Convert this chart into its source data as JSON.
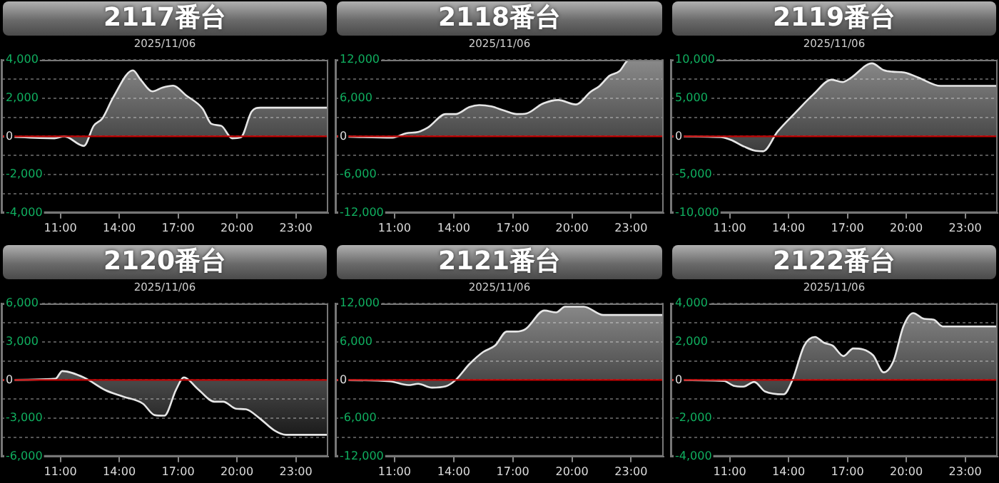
{
  "chart_data": [
    {
      "type": "area",
      "title": "2117番台",
      "subtitle": "2025/11/06",
      "color": "#e6e6e6",
      "grid": "y",
      "x": [
        8,
        10.7,
        11.2,
        12.2,
        12.7,
        13.15,
        13.7,
        14.7,
        15.1,
        15.7,
        16.2,
        16.75,
        17.4,
        18.25,
        18.7,
        19.2,
        19.75,
        20.2,
        20.75,
        21.2,
        24.65
      ],
      "values": [
        0,
        -100,
        0,
        -500,
        550,
        950,
        2050,
        3450,
        2950,
        2350,
        2550,
        2650,
        2150,
        1450,
        650,
        550,
        -100,
        -50,
        1300,
        1500,
        1500
      ],
      "xlim": [
        8,
        24.65
      ],
      "xticks": [
        {
          "value": 11,
          "label": "11:00"
        },
        {
          "value": 14,
          "label": "14:00"
        },
        {
          "value": 17,
          "label": "17:00"
        },
        {
          "value": 20,
          "label": "20:00"
        },
        {
          "value": 23,
          "label": "23:00"
        }
      ],
      "ylim": [
        -4000,
        4000
      ],
      "yticks": [
        {
          "value": -4000,
          "label": "-4,000"
        },
        {
          "value": -3000,
          "label": null
        },
        {
          "value": -2000,
          "label": "-2,000"
        },
        {
          "value": -1000,
          "label": null
        },
        {
          "value": 0,
          "label": "0"
        },
        {
          "value": 1000,
          "label": null
        },
        {
          "value": 2000,
          "label": "2,000"
        },
        {
          "value": 3000,
          "label": null
        },
        {
          "value": 4000,
          "label": "4,000"
        }
      ],
      "ref_lines": [
        {
          "axis": "y",
          "value": 0,
          "color": "#c00000"
        }
      ]
    },
    {
      "type": "area",
      "title": "2118番台",
      "subtitle": "2025/11/06",
      "color": "#e6e6e6",
      "grid": "y",
      "x": [
        8,
        10.9,
        11.6,
        12.2,
        12.7,
        13.6,
        14.1,
        14.8,
        15.3,
        15.9,
        16.6,
        17.2,
        17.7,
        18.5,
        19.3,
        20.2,
        20.95,
        21.4,
        21.9,
        22.4,
        22.9,
        24.65
      ],
      "values": [
        0,
        -200,
        500,
        700,
        1400,
        3500,
        3500,
        4600,
        4900,
        4700,
        4000,
        3500,
        3600,
        5100,
        5700,
        5000,
        7000,
        7900,
        9500,
        10200,
        12000,
        12000
      ],
      "xlim": [
        8,
        24.65
      ],
      "xticks": [
        {
          "value": 11,
          "label": "11:00"
        },
        {
          "value": 14,
          "label": "14:00"
        },
        {
          "value": 17,
          "label": "17:00"
        },
        {
          "value": 20,
          "label": "20:00"
        },
        {
          "value": 23,
          "label": "23:00"
        }
      ],
      "ylim": [
        -12000,
        12000
      ],
      "yticks": [
        {
          "value": -12000,
          "label": "-12,000"
        },
        {
          "value": -9000,
          "label": null
        },
        {
          "value": -6000,
          "label": "-6,000"
        },
        {
          "value": -3000,
          "label": null
        },
        {
          "value": 0,
          "label": "0"
        },
        {
          "value": 3000,
          "label": null
        },
        {
          "value": 6000,
          "label": "6,000"
        },
        {
          "value": 9000,
          "label": null
        },
        {
          "value": 12000,
          "label": "12,000"
        }
      ],
      "ref_lines": [
        {
          "axis": "y",
          "value": 0,
          "color": "#c00000"
        }
      ]
    },
    {
      "type": "area",
      "title": "2119番台",
      "subtitle": "2025/11/06",
      "color": "#e6e6e6",
      "grid": "y",
      "x": [
        8,
        10.55,
        11.05,
        11.75,
        12.25,
        12.7,
        13.45,
        14.35,
        15.25,
        16.2,
        16.75,
        17.15,
        18.25,
        18.85,
        19.3,
        19.9,
        20.6,
        21.75,
        24.65
      ],
      "values": [
        0,
        -100,
        -450,
        -1350,
        -1850,
        -1950,
        650,
        3100,
        5450,
        7400,
        7100,
        7600,
        9550,
        8650,
        8450,
        8350,
        7700,
        6600,
        6600
      ],
      "xlim": [
        8,
        24.65
      ],
      "xticks": [
        {
          "value": 11,
          "label": "11:00"
        },
        {
          "value": 14,
          "label": "14:00"
        },
        {
          "value": 17,
          "label": "17:00"
        },
        {
          "value": 20,
          "label": "20:00"
        },
        {
          "value": 23,
          "label": "23:00"
        }
      ],
      "ylim": [
        -10000,
        10000
      ],
      "yticks": [
        {
          "value": -10000,
          "label": "-10,000"
        },
        {
          "value": -7500,
          "label": null
        },
        {
          "value": -5000,
          "label": "-5,000"
        },
        {
          "value": -2500,
          "label": null
        },
        {
          "value": 0,
          "label": "0"
        },
        {
          "value": 2500,
          "label": null
        },
        {
          "value": 5000,
          "label": "5,000"
        },
        {
          "value": 7500,
          "label": null
        },
        {
          "value": 10000,
          "label": "10,000"
        }
      ],
      "ref_lines": [
        {
          "axis": "y",
          "value": 0,
          "color": "#c00000"
        }
      ]
    },
    {
      "type": "area",
      "title": "2120番台",
      "subtitle": "2025/11/06",
      "color": "#e6e6e6",
      "grid": "y",
      "x": [
        8,
        10.75,
        11.1,
        12.2,
        13.3,
        14.2,
        15.2,
        15.8,
        16.3,
        16.9,
        17.3,
        18,
        18.85,
        19.3,
        19.95,
        20.45,
        21.15,
        21.9,
        22.5,
        24.65
      ],
      "values": [
        0,
        100,
        700,
        200,
        -800,
        -1300,
        -1850,
        -2750,
        -2800,
        -750,
        200,
        -700,
        -1700,
        -1700,
        -2250,
        -2300,
        -3000,
        -3950,
        -4300,
        -4300
      ],
      "xlim": [
        8,
        24.65
      ],
      "xticks": [
        {
          "value": 11,
          "label": "11:00"
        },
        {
          "value": 14,
          "label": "14:00"
        },
        {
          "value": 17,
          "label": "17:00"
        },
        {
          "value": 20,
          "label": "20:00"
        },
        {
          "value": 23,
          "label": "23:00"
        }
      ],
      "ylim": [
        -6000,
        6000
      ],
      "yticks": [
        {
          "value": -6000,
          "label": "-6,000"
        },
        {
          "value": -4500,
          "label": null
        },
        {
          "value": -3000,
          "label": "-3,000"
        },
        {
          "value": -1500,
          "label": null
        },
        {
          "value": 0,
          "label": "0"
        },
        {
          "value": 1500,
          "label": null
        },
        {
          "value": 3000,
          "label": "3,000"
        },
        {
          "value": 4500,
          "label": null
        },
        {
          "value": 6000,
          "label": "6,000"
        }
      ],
      "ref_lines": [
        {
          "axis": "y",
          "value": 0,
          "color": "#c00000"
        }
      ]
    },
    {
      "type": "area",
      "title": "2121番台",
      "subtitle": "2025/11/06",
      "color": "#e6e6e6",
      "grid": "y",
      "x": [
        8,
        10.75,
        11.7,
        12.2,
        12.9,
        13.6,
        14.1,
        14.8,
        15.5,
        16.1,
        16.7,
        17.15,
        17.65,
        18.6,
        19.2,
        19.65,
        20.6,
        21.6,
        24.65
      ],
      "values": [
        0,
        -200,
        -800,
        -600,
        -1200,
        -1000,
        0,
        2500,
        4400,
        5400,
        7600,
        7600,
        8000,
        10900,
        10600,
        11500,
        11500,
        10200,
        10200
      ],
      "xlim": [
        8,
        24.65
      ],
      "xticks": [
        {
          "value": 11,
          "label": "11:00"
        },
        {
          "value": 14,
          "label": "14:00"
        },
        {
          "value": 17,
          "label": "17:00"
        },
        {
          "value": 20,
          "label": "20:00"
        },
        {
          "value": 23,
          "label": "23:00"
        }
      ],
      "ylim": [
        -12000,
        12000
      ],
      "yticks": [
        {
          "value": -12000,
          "label": "-12,000"
        },
        {
          "value": -9000,
          "label": null
        },
        {
          "value": -6000,
          "label": "-6,000"
        },
        {
          "value": -3000,
          "label": null
        },
        {
          "value": 0,
          "label": "0"
        },
        {
          "value": 3000,
          "label": null
        },
        {
          "value": 6000,
          "label": "6,000"
        },
        {
          "value": 9000,
          "label": null
        },
        {
          "value": 12000,
          "label": "12,000"
        }
      ],
      "ref_lines": [
        {
          "axis": "y",
          "value": 0,
          "color": "#c00000"
        }
      ]
    },
    {
      "type": "area",
      "title": "2122番台",
      "subtitle": "2025/11/06",
      "color": "#e6e6e6",
      "grid": "y",
      "x": [
        8,
        10.7,
        11.2,
        11.7,
        12.25,
        12.8,
        13.75,
        14.2,
        14.8,
        15.35,
        15.8,
        16.25,
        16.8,
        17.3,
        18.3,
        18.85,
        19.35,
        19.85,
        20.35,
        20.9,
        21.4,
        21.85,
        24.65
      ],
      "values": [
        0,
        -50,
        -300,
        -350,
        -100,
        -600,
        -750,
        0,
        1800,
        2250,
        1950,
        1800,
        1250,
        1650,
        1300,
        400,
        1000,
        2800,
        3500,
        3200,
        3150,
        2800,
        2800
      ],
      "xlim": [
        8,
        24.65
      ],
      "xticks": [
        {
          "value": 11,
          "label": "11:00"
        },
        {
          "value": 14,
          "label": "14:00"
        },
        {
          "value": 17,
          "label": "17:00"
        },
        {
          "value": 20,
          "label": "20:00"
        },
        {
          "value": 23,
          "label": "23:00"
        }
      ],
      "ylim": [
        -4000,
        4000
      ],
      "yticks": [
        {
          "value": -4000,
          "label": "-4,000"
        },
        {
          "value": -3000,
          "label": null
        },
        {
          "value": -2000,
          "label": "-2,000"
        },
        {
          "value": -1000,
          "label": null
        },
        {
          "value": 0,
          "label": "0"
        },
        {
          "value": 1000,
          "label": null
        },
        {
          "value": 2000,
          "label": "2,000"
        },
        {
          "value": 3000,
          "label": null
        },
        {
          "value": 4000,
          "label": "4,000"
        }
      ],
      "ref_lines": [
        {
          "axis": "y",
          "value": 0,
          "color": "#c00000"
        }
      ]
    }
  ]
}
